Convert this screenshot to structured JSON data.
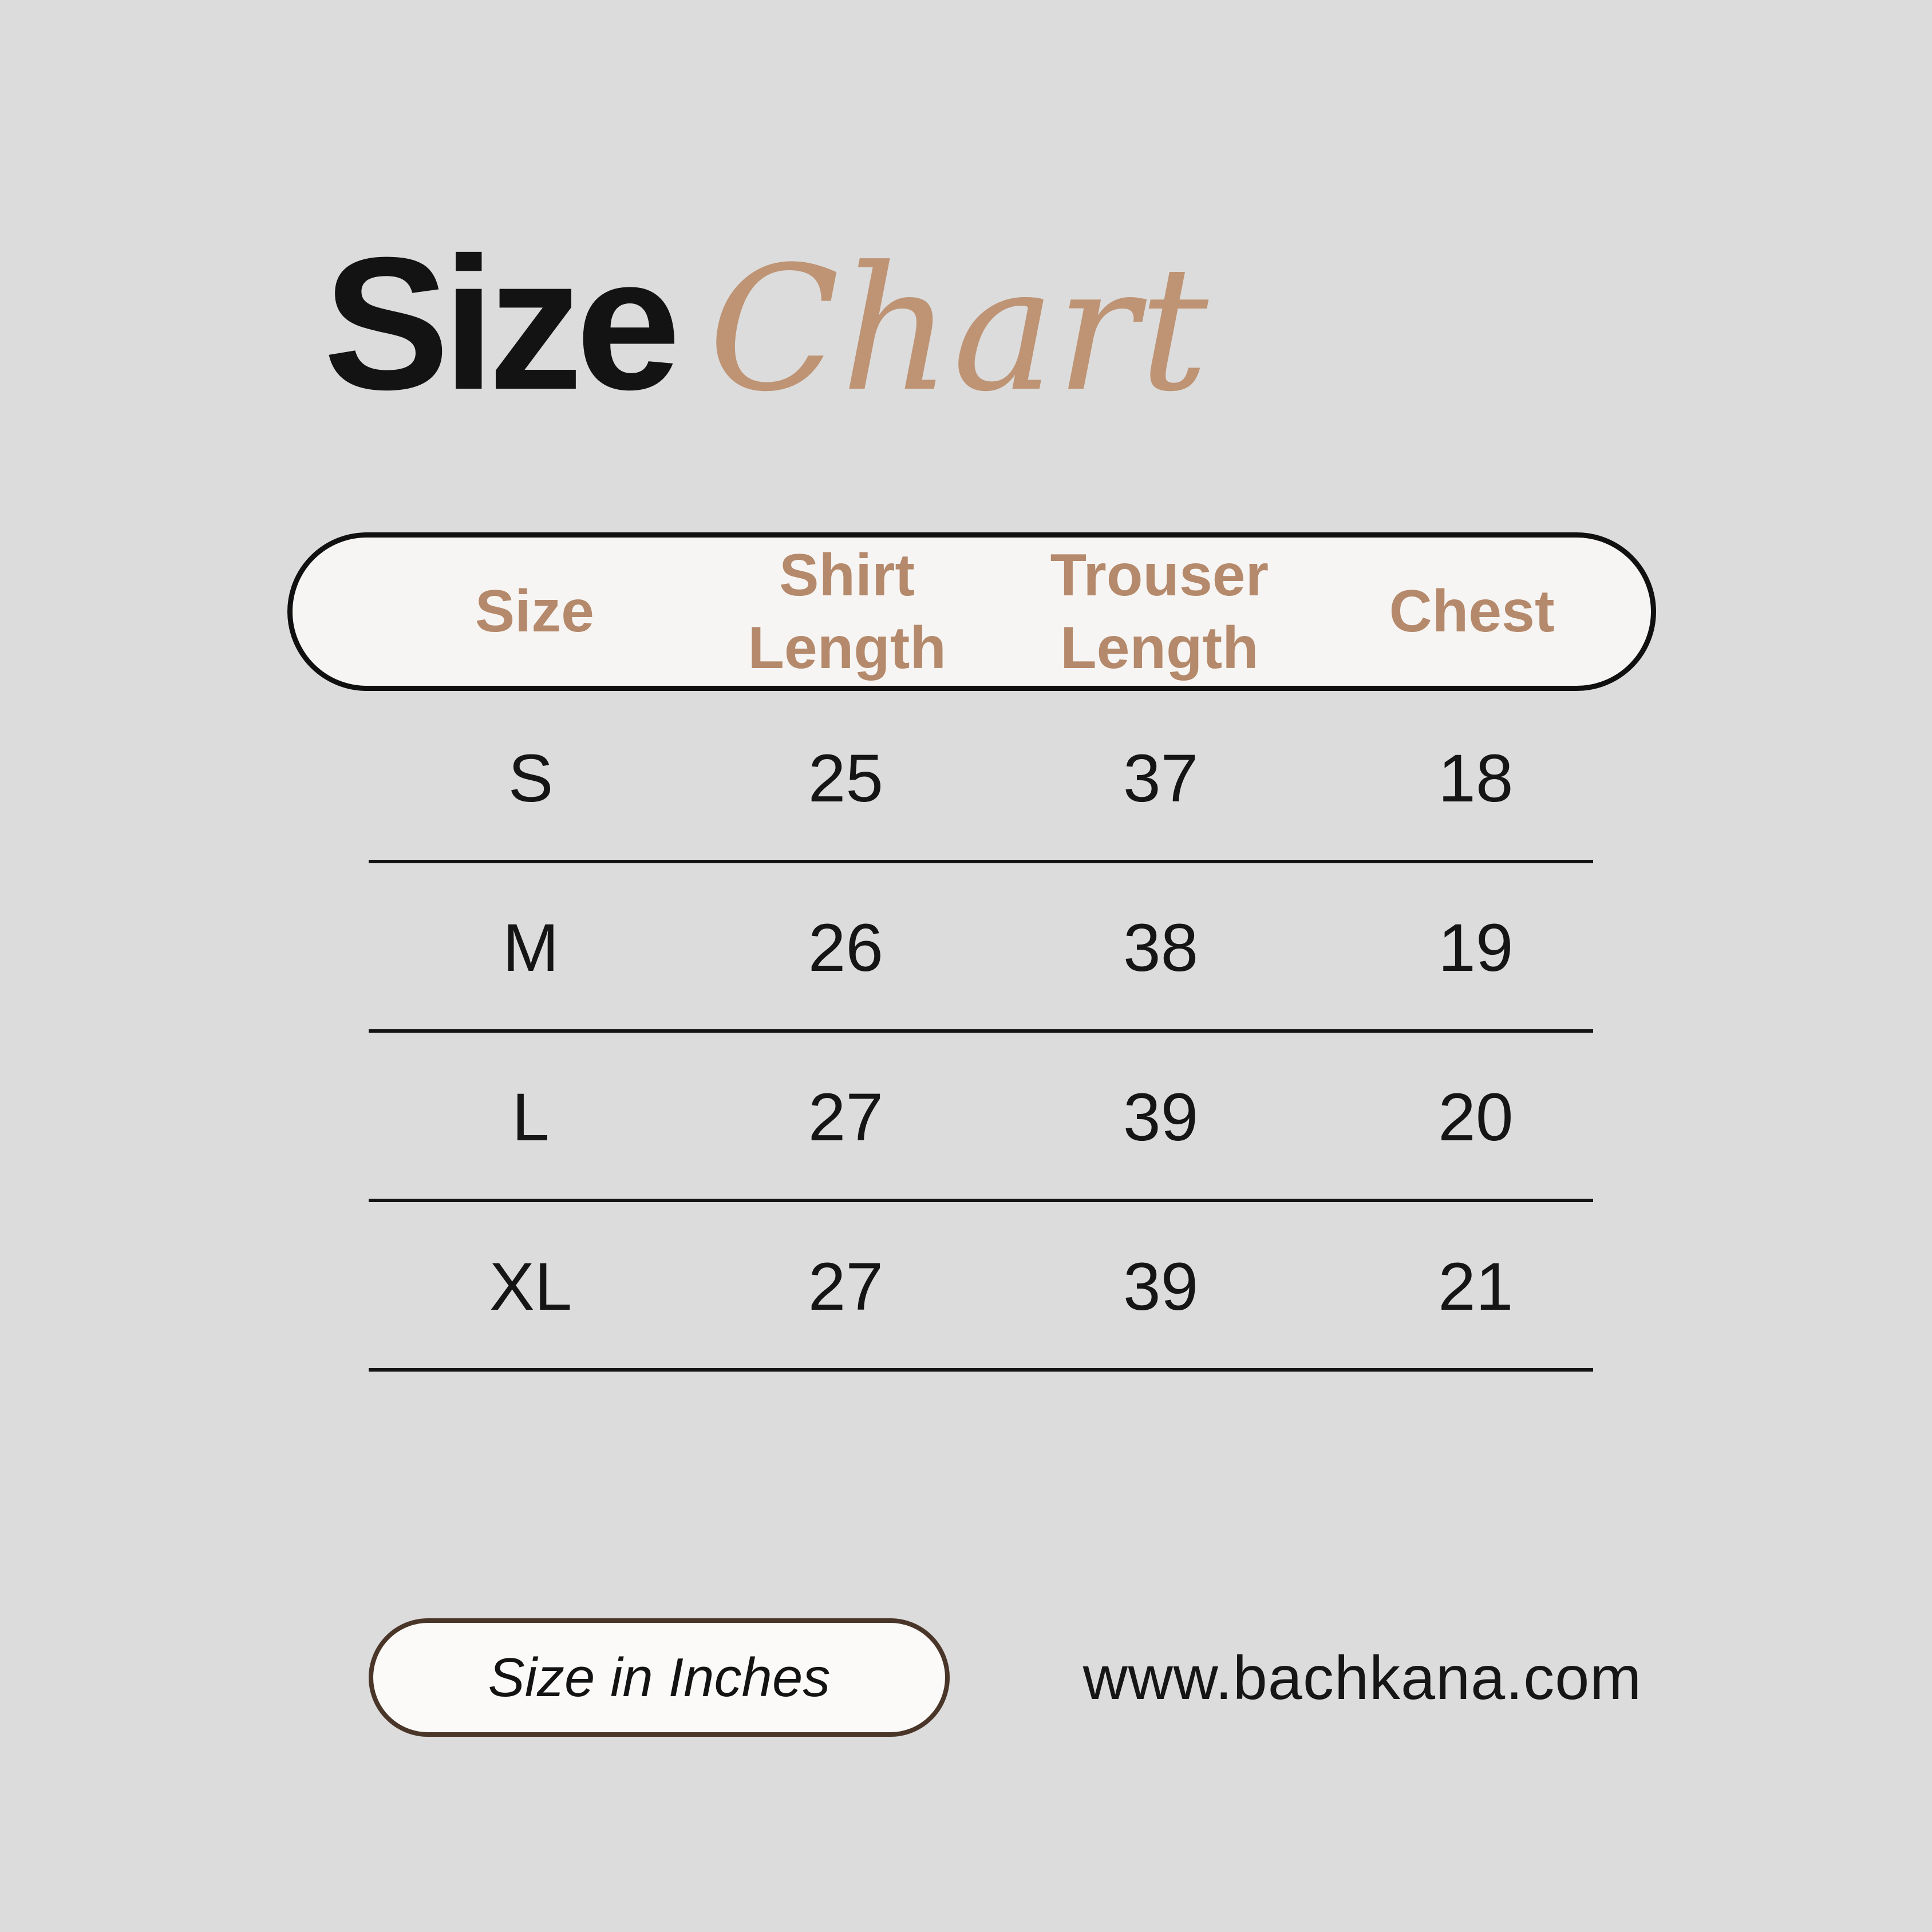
{
  "title": {
    "main": "Size",
    "script": "Chart",
    "main_color": "#131313",
    "script_color": "#be9475"
  },
  "table": {
    "header": {
      "columns": [
        "Size",
        "Shirt Length",
        "Trouser Length",
        "Chest"
      ],
      "text_color": "#b5896b",
      "fill_color": "#f6f5f3",
      "border_color": "#101010"
    },
    "rows": [
      {
        "size": "S",
        "shirt_length": "25",
        "trouser_length": "37",
        "chest": "18"
      },
      {
        "size": "M",
        "shirt_length": "26",
        "trouser_length": "38",
        "chest": "19"
      },
      {
        "size": "L",
        "shirt_length": "27",
        "trouser_length": "39",
        "chest": "20"
      },
      {
        "size": "XL",
        "shirt_length": "27",
        "trouser_length": "39",
        "chest": "21"
      }
    ]
  },
  "footer": {
    "note": "Size in Inches",
    "note_border_color": "#4a3529",
    "website": "www.bachkana.com"
  },
  "page": {
    "background_color": "#dcdcdc"
  },
  "chart_data": {
    "type": "table",
    "title": "Size Chart",
    "columns": [
      "Size",
      "Shirt Length",
      "Trouser Length",
      "Chest"
    ],
    "rows": [
      [
        "S",
        25,
        37,
        18
      ],
      [
        "M",
        26,
        38,
        19
      ],
      [
        "L",
        27,
        39,
        20
      ],
      [
        "XL",
        27,
        39,
        21
      ]
    ],
    "units": "inches",
    "footnote": "Size in Inches",
    "website": "www.bachkana.com"
  }
}
